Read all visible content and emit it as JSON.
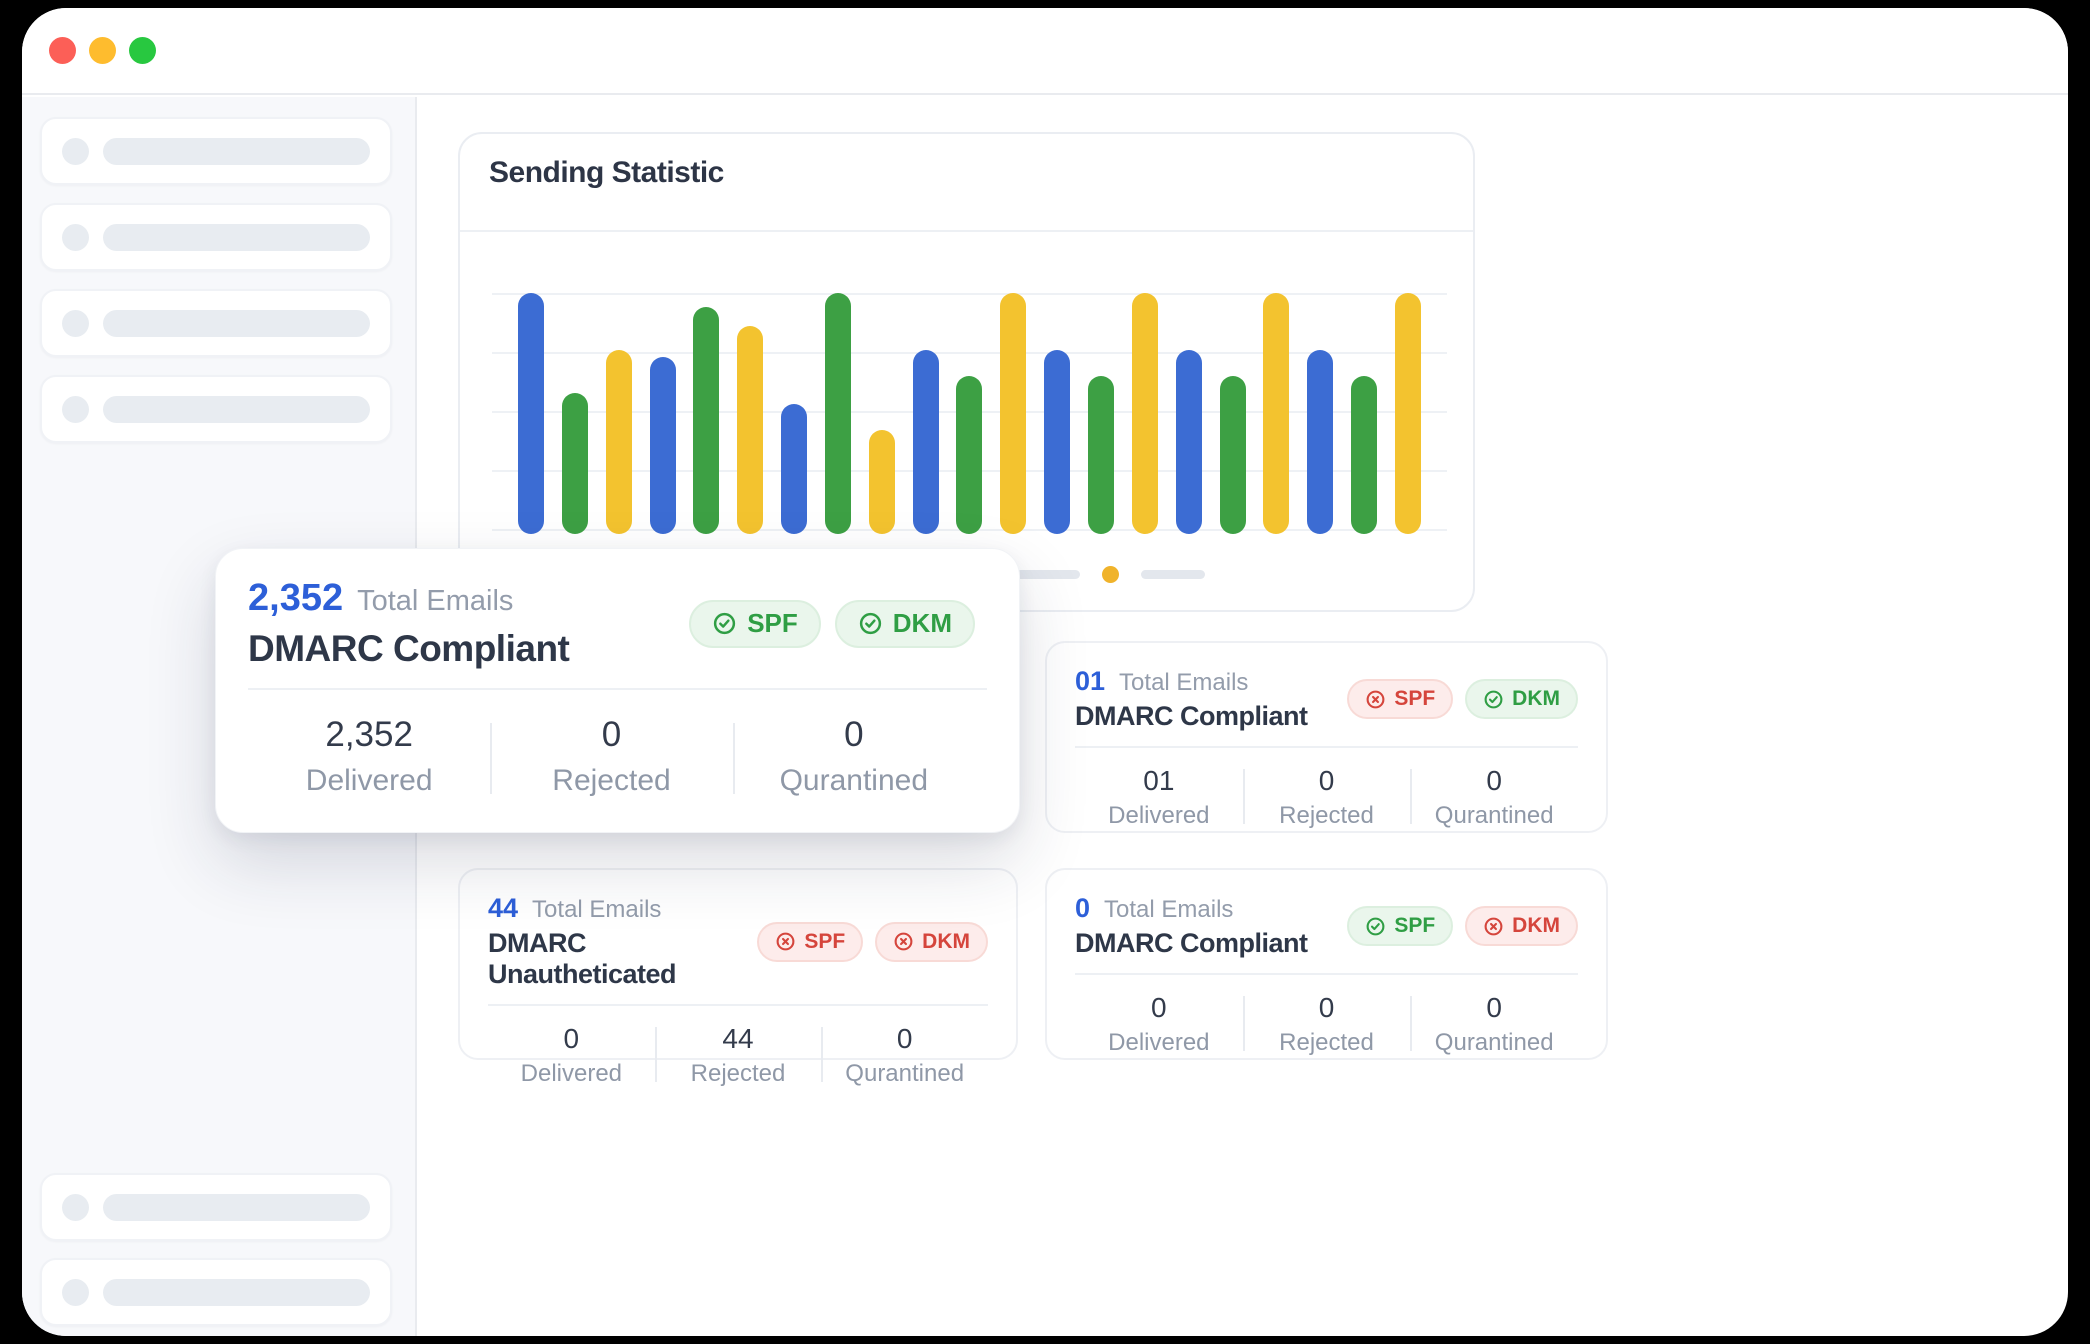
{
  "window": {
    "traffic_lights": [
      {
        "name": "close",
        "color": "#fc5f57"
      },
      {
        "name": "minimize",
        "color": "#febc2e"
      },
      {
        "name": "zoom",
        "color": "#28c840"
      }
    ]
  },
  "sidebar": {
    "top_skeleton_items": 4,
    "bottom_skeleton_items": 2
  },
  "chart_data": {
    "type": "bar",
    "title": "Sending Statistic",
    "ylim": [
      0,
      100
    ],
    "gridlines": 5,
    "legend": "none",
    "axis_labels": "none",
    "series_colors": {
      "blue": "#3c6cd3",
      "green": "#3da044",
      "yellow": "#f3c32f"
    },
    "bars": [
      {
        "color": "blue",
        "value": 100
      },
      {
        "color": "green",
        "value": 58
      },
      {
        "color": "yellow",
        "value": 76
      },
      {
        "color": "blue",
        "value": 73
      },
      {
        "color": "green",
        "value": 94
      },
      {
        "color": "yellow",
        "value": 86
      },
      {
        "color": "blue",
        "value": 53
      },
      {
        "color": "green",
        "value": 100
      },
      {
        "color": "yellow",
        "value": 42
      },
      {
        "color": "blue",
        "value": 76
      },
      {
        "color": "green",
        "value": 65
      },
      {
        "color": "yellow",
        "value": 100
      },
      {
        "color": "blue",
        "value": 76
      },
      {
        "color": "green",
        "value": 65
      },
      {
        "color": "yellow",
        "value": 100
      },
      {
        "color": "blue",
        "value": 76
      },
      {
        "color": "green",
        "value": 65
      },
      {
        "color": "yellow",
        "value": 100
      },
      {
        "color": "blue",
        "value": 76
      },
      {
        "color": "green",
        "value": 65
      },
      {
        "color": "yellow",
        "value": 100
      }
    ]
  },
  "carousel": {
    "items": [
      "dash",
      "active-dot",
      "dash"
    ],
    "active_dot_color": "#f0b32b"
  },
  "cards": [
    {
      "position": "main",
      "size": "large",
      "total": "2,352",
      "total_label": "Total Emails",
      "title": "DMARC Compliant",
      "badges": [
        {
          "label": "SPF",
          "status": "pass"
        },
        {
          "label": "DKM",
          "status": "pass"
        }
      ],
      "stats": [
        {
          "value": "2,352",
          "label": "Delivered"
        },
        {
          "value": "0",
          "label": "Rejected"
        },
        {
          "value": "0",
          "label": "Qurantined"
        }
      ]
    },
    {
      "position": "top-right",
      "size": "small",
      "total": "01",
      "total_label": "Total Emails",
      "title": "DMARC Compliant",
      "badges": [
        {
          "label": "SPF",
          "status": "fail"
        },
        {
          "label": "DKM",
          "status": "pass"
        }
      ],
      "stats": [
        {
          "value": "01",
          "label": "Delivered"
        },
        {
          "value": "0",
          "label": "Rejected"
        },
        {
          "value": "0",
          "label": "Qurantined"
        }
      ]
    },
    {
      "position": "bottom-left",
      "size": "small",
      "total": "44",
      "total_label": "Total Emails",
      "title": "DMARC Unautheticated",
      "badges": [
        {
          "label": "SPF",
          "status": "fail"
        },
        {
          "label": "DKM",
          "status": "fail"
        }
      ],
      "stats": [
        {
          "value": "0",
          "label": "Delivered"
        },
        {
          "value": "44",
          "label": "Rejected"
        },
        {
          "value": "0",
          "label": "Qurantined"
        }
      ]
    },
    {
      "position": "bottom-right",
      "size": "small",
      "total": "0",
      "total_label": "Total Emails",
      "title": "DMARC Compliant",
      "badges": [
        {
          "label": "SPF",
          "status": "pass"
        },
        {
          "label": "DKM",
          "status": "fail"
        }
      ],
      "stats": [
        {
          "value": "0",
          "label": "Delivered"
        },
        {
          "value": "0",
          "label": "Rejected"
        },
        {
          "value": "0",
          "label": "Qurantined"
        }
      ]
    }
  ],
  "status_colors": {
    "pass_text": "#2f9e44",
    "pass_bg": "#eaf6ec",
    "fail_text": "#d5453c",
    "fail_bg": "#fdeceb",
    "accent_blue": "#2d5fd8"
  }
}
